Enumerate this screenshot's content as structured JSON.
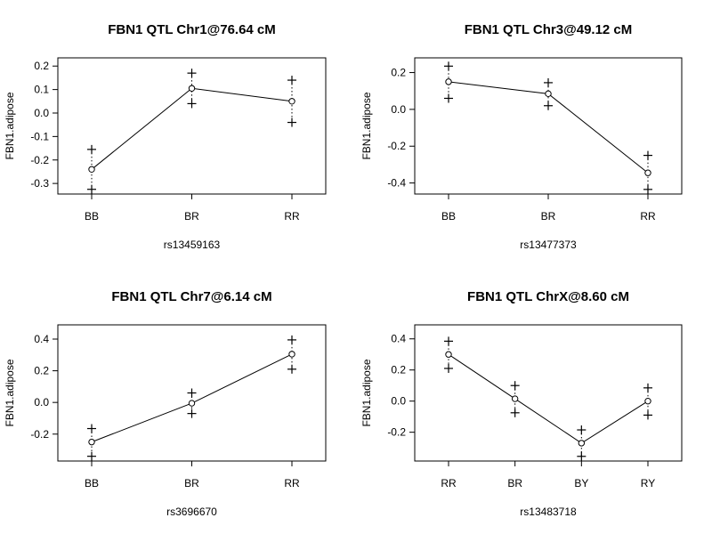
{
  "chart_data": [
    {
      "type": "line",
      "title": "FBN1 QTL Chr1@76.64 cM",
      "xlabel": "rs13459163",
      "ylabel": "FBN1.adipose",
      "categories": [
        "BB",
        "BR",
        "RR"
      ],
      "ylim": [
        -0.345,
        0.235
      ],
      "yticks": [
        -0.3,
        -0.2,
        -0.1,
        0.0,
        0.1,
        0.2
      ],
      "ytick_labels": [
        "-0.3",
        "-0.2",
        "-0.1",
        "0.0",
        "0.1",
        "0.2"
      ],
      "series": [
        {
          "values": [
            -0.24,
            0.105,
            0.05
          ],
          "lower": [
            -0.325,
            0.04,
            -0.04
          ],
          "upper": [
            -0.155,
            0.17,
            0.14
          ]
        }
      ]
    },
    {
      "type": "line",
      "title": "FBN1 QTL Chr3@49.12 cM",
      "xlabel": "rs13477373",
      "ylabel": "FBN1.adipose",
      "categories": [
        "BB",
        "BR",
        "RR"
      ],
      "ylim": [
        -0.46,
        0.28
      ],
      "yticks": [
        -0.4,
        -0.2,
        0.0,
        0.2
      ],
      "ytick_labels": [
        "-0.4",
        "-0.2",
        "0.0",
        "0.2"
      ],
      "series": [
        {
          "values": [
            0.15,
            0.085,
            -0.345
          ],
          "lower": [
            0.06,
            0.02,
            -0.435
          ],
          "upper": [
            0.235,
            0.145,
            -0.25
          ]
        }
      ]
    },
    {
      "type": "line",
      "title": "FBN1 QTL Chr7@6.14 cM",
      "xlabel": "rs3696670",
      "ylabel": "FBN1.adipose",
      "categories": [
        "BB",
        "BR",
        "RR"
      ],
      "ylim": [
        -0.37,
        0.49
      ],
      "yticks": [
        -0.2,
        0.0,
        0.2,
        0.4
      ],
      "ytick_labels": [
        "-0.2",
        "0.0",
        "0.2",
        "0.4"
      ],
      "series": [
        {
          "values": [
            -0.25,
            -0.005,
            0.305
          ],
          "lower": [
            -0.34,
            -0.07,
            0.21
          ],
          "upper": [
            -0.165,
            0.06,
            0.395
          ]
        }
      ]
    },
    {
      "type": "line",
      "title": "FBN1 QTL ChrX@8.60 cM",
      "xlabel": "rs13483718",
      "ylabel": "FBN1.adipose",
      "categories": [
        "RR",
        "BR",
        "BY",
        "RY"
      ],
      "ylim": [
        -0.385,
        0.49
      ],
      "yticks": [
        -0.2,
        0.0,
        0.2,
        0.4
      ],
      "ytick_labels": [
        "-0.2",
        "0.0",
        "0.2",
        "0.4"
      ],
      "series": [
        {
          "values": [
            0.3,
            0.015,
            -0.27,
            0.0
          ],
          "lower": [
            0.21,
            -0.075,
            -0.355,
            -0.09
          ],
          "upper": [
            0.385,
            0.1,
            -0.185,
            0.085
          ]
        }
      ]
    }
  ]
}
